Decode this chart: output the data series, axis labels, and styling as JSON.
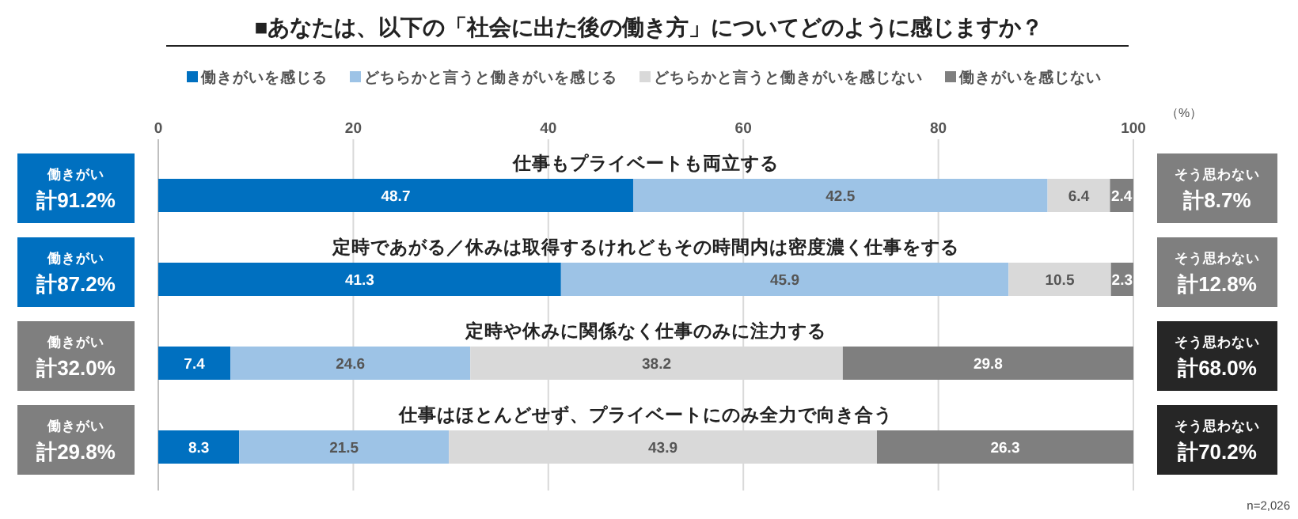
{
  "chart_data": {
    "type": "bar",
    "orientation": "horizontal",
    "stacked": true,
    "title": "■あなたは、以下の「社会に出た後の働き方」についてどのように感じますか？",
    "xlabel": "（%）",
    "categories": [
      "仕事もプライベートも両立する",
      "定時であがる／休みは取得するけれどもその時間内は密度濃く仕事をする",
      "定時や休みに関係なく仕事のみに注力する",
      "仕事はほとんどせず、プライベートにのみ全力で向き合う"
    ],
    "series": [
      {
        "name": "働きがいを感じる",
        "color": "#0070c0",
        "values": [
          48.7,
          41.3,
          7.4,
          8.3
        ]
      },
      {
        "name": "どちらかと言うと働きがいを感じる",
        "color": "#9dc3e6",
        "values": [
          42.5,
          45.9,
          24.6,
          21.5
        ]
      },
      {
        "name": "どちらかと言うと働きがいを感じない",
        "color": "#d9d9d9",
        "values": [
          6.4,
          10.5,
          38.2,
          43.9
        ]
      },
      {
        "name": "働きがいを感じない",
        "color": "#7f7f7f",
        "values": [
          2.4,
          2.3,
          29.8,
          26.3
        ]
      }
    ],
    "xlim": [
      0,
      100
    ],
    "xticks": [
      0,
      20,
      40,
      60,
      80,
      100
    ],
    "grid": "x",
    "legend": "top",
    "data_labels": true,
    "annotations": [
      "働きがい",
      "計91.2%",
      "そう思わない",
      "計8.7%",
      "働きがい",
      "計87.2%",
      "そう思わない",
      "計12.8%",
      "働きがい",
      "計32.0%",
      "そう思わない",
      "計68.0%",
      "働きがい",
      "計29.8%",
      "そう思わない",
      "計70.2%",
      "n=2,026"
    ]
  }
}
